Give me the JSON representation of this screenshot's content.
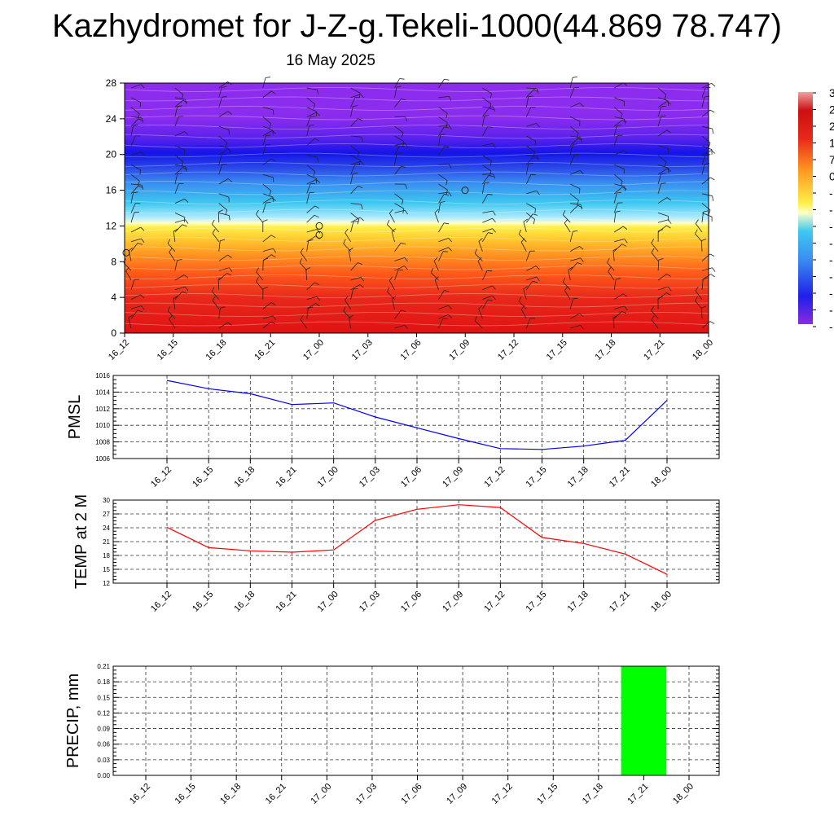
{
  "title": "Kazhydromet for J-Z-g.Tekeli-1000(44.869 78.747)",
  "date": "16 May 2025",
  "time_labels": [
    "16_12",
    "16_15",
    "16_18",
    "16_21",
    "17_00",
    "17_03",
    "17_06",
    "17_09",
    "17_12",
    "17_15",
    "17_18",
    "17_21",
    "18_00"
  ],
  "chart_data": [
    {
      "type": "heatmap",
      "title": "",
      "ylabel": "",
      "y_ticks": [
        "0",
        "4",
        "8",
        "12",
        "16",
        "20",
        "24",
        "28"
      ],
      "ylim": [
        0,
        28
      ],
      "colorbar_visible_labels": [
        "3",
        "2",
        "2",
        "1",
        "7",
        "0",
        "-",
        "-",
        "-",
        "-",
        "-",
        "-",
        "-",
        "-",
        "-"
      ],
      "description_values": {
        "x": [
          "16_12",
          "16_15",
          "16_18",
          "16_21",
          "17_00",
          "17_03",
          "17_06",
          "17_09",
          "17_12",
          "17_15",
          "17_18",
          "17_21",
          "18_00"
        ],
        "surface_color": "#d81e1e",
        "top_color": "#8a2be2",
        "freezing_level_height": 12
      },
      "colors": {
        "hot": "#cc0000",
        "warm": "#ff7f00",
        "yellow": "#ffee33",
        "cyan": "#33ccee",
        "blue": "#1f1fe8",
        "violet": "#8a2be2"
      }
    },
    {
      "type": "line",
      "ylabel": "PMSL",
      "categories": [
        "16_12",
        "16_15",
        "16_18",
        "16_21",
        "17_00",
        "17_03",
        "17_06",
        "17_09",
        "17_12",
        "17_15",
        "17_18",
        "17_21",
        "18_00"
      ],
      "values": [
        1015.4,
        1014.4,
        1013.8,
        1012.5,
        1012.7,
        1011.0,
        1009.7,
        1008.4,
        1007.2,
        1007.1,
        1007.5,
        1008.2,
        1013.0
      ],
      "ylim": [
        1006,
        1016
      ],
      "y_ticks": [
        1006,
        1008,
        1010,
        1012,
        1014,
        1016
      ],
      "color": "#0000ff",
      "grid": true
    },
    {
      "type": "line",
      "ylabel": "TEMP at 2 M",
      "categories": [
        "16_12",
        "16_15",
        "16_18",
        "16_21",
        "17_00",
        "17_03",
        "17_06",
        "17_09",
        "17_12",
        "17_15",
        "17_18",
        "17_21",
        "18_00"
      ],
      "values": [
        24.1,
        19.7,
        19.0,
        18.7,
        19.2,
        25.6,
        28.0,
        29.0,
        28.4,
        21.9,
        20.6,
        18.3,
        13.9
      ],
      "ylim": [
        12,
        30
      ],
      "y_ticks": [
        12,
        15,
        18,
        21,
        24,
        27,
        30
      ],
      "color": "#ff0000",
      "grid": true
    },
    {
      "type": "bar",
      "ylabel": "PRECIP, mm",
      "categories": [
        "16_12",
        "16_15",
        "16_18",
        "16_21",
        "17_00",
        "17_03",
        "17_06",
        "17_09",
        "17_12",
        "17_15",
        "17_18",
        "17_21",
        "18_00"
      ],
      "values": [
        0,
        0,
        0,
        0,
        0,
        0,
        0,
        0,
        0,
        0,
        0,
        0.21,
        0
      ],
      "ylim": [
        0,
        0.21
      ],
      "y_ticks": [
        "0.00",
        "0.03",
        "0.06",
        "0.09",
        "0.12",
        "0.15",
        "0.18",
        "0.21"
      ],
      "color": "#00ff00",
      "grid": true
    }
  ]
}
